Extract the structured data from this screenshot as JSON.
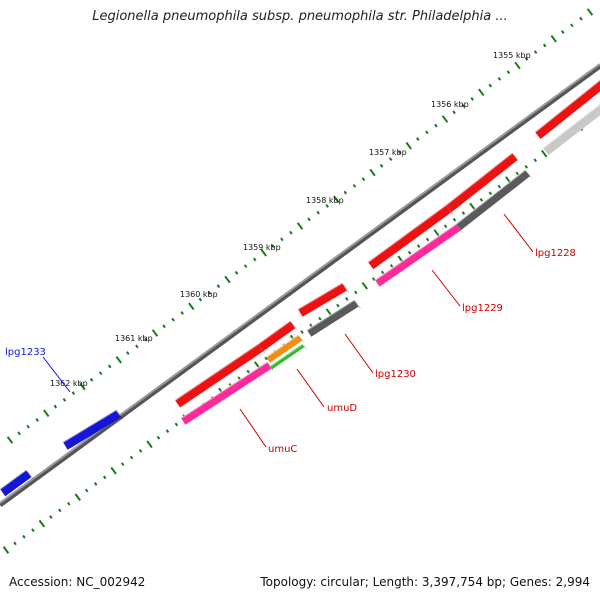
{
  "title": "Legionella pneumophila subsp. pneumophila str. Philadelphia ...",
  "footer": {
    "accession": "Accession: NC_002942",
    "summary": "Topology: circular; Length: 3,397,754 bp; Genes: 2,994"
  },
  "ruler": {
    "unit": "kbp",
    "labels": [
      "1355 kbp",
      "1356 kbp",
      "1357 kbp",
      "1358 kbp",
      "1359 kbp",
      "1360 kbp",
      "1361 kbp",
      "1362 kbp"
    ],
    "tick_color": "#1a7a1a"
  },
  "genes": [
    {
      "name": "lpg1233",
      "color": "#1515d6",
      "label_color": "#1515d6"
    },
    {
      "name": "umuC",
      "color": "#ff2a9a",
      "label_color": "#cc0000"
    },
    {
      "name": "umuD",
      "color": "#f28c14",
      "label_color": "#cc0000"
    },
    {
      "name": "lpg1230",
      "color": "#5a5a5a",
      "label_color": "#cc0000"
    },
    {
      "name": "lpg1229",
      "color": "#ff2a9a",
      "label_color": "#cc0000"
    },
    {
      "name": "lpg1228",
      "color": "#5a5a5a",
      "label_color": "#cc0000"
    }
  ],
  "colors": {
    "cds": "#ee1111",
    "backbone": "#7a7a7a",
    "gene_blue": "#1515d6",
    "gene_pink": "#ff2a9a",
    "gene_orange": "#f28c14",
    "gene_green": "#33bb33",
    "gene_dark_gray": "#5a5a5a",
    "gene_light_gray": "#c8c8c8"
  }
}
